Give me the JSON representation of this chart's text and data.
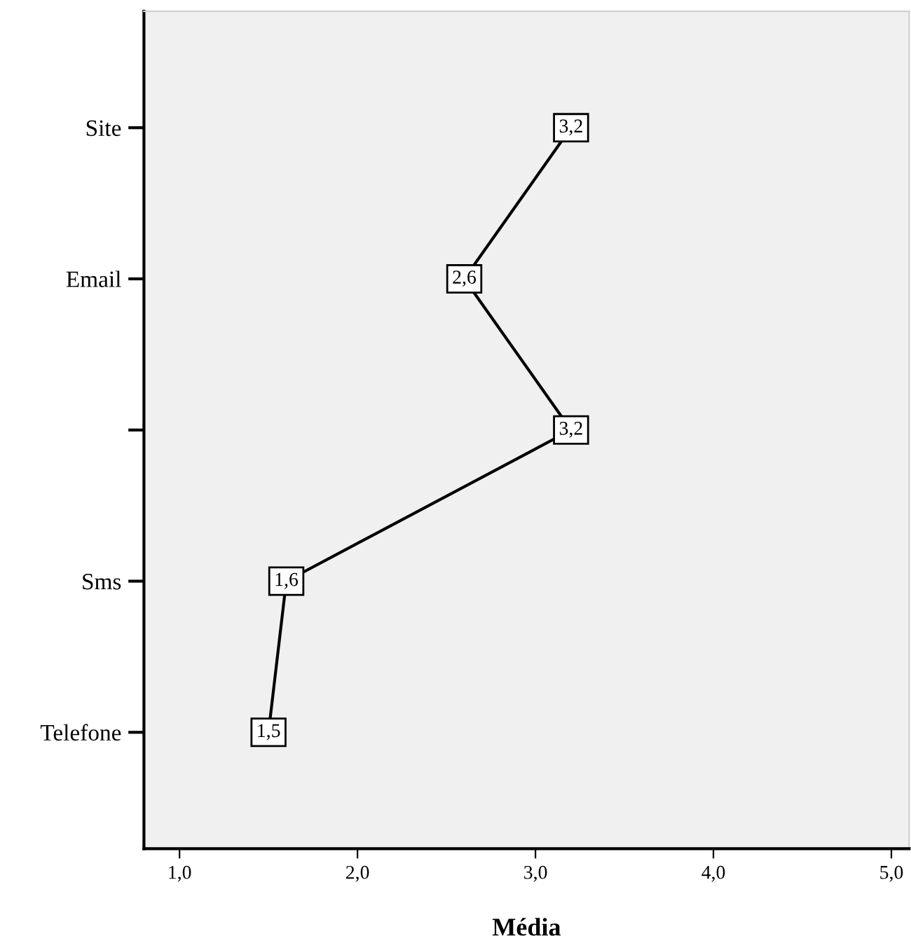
{
  "chart_data": {
    "type": "line",
    "orientation": "horizontal",
    "xlabel": "Média",
    "categories": [
      "Site",
      "Email",
      null,
      "Sms",
      "Telefone"
    ],
    "values": [
      3.2,
      2.6,
      3.2,
      1.6,
      1.5
    ],
    "value_labels": [
      "3,2",
      "2,6",
      "3,2",
      "1,6",
      "1,5"
    ],
    "color": "#000000",
    "marker": "square",
    "grid": false,
    "legend": false,
    "xlim": [
      0.8,
      5.1
    ],
    "xticks": [
      {
        "value": 1,
        "label": "1,0"
      },
      {
        "value": 2,
        "label": "2,0"
      },
      {
        "value": 3,
        "label": "3,0"
      },
      {
        "value": 4,
        "label": "4,0"
      },
      {
        "value": 5,
        "label": "5,0"
      }
    ]
  }
}
